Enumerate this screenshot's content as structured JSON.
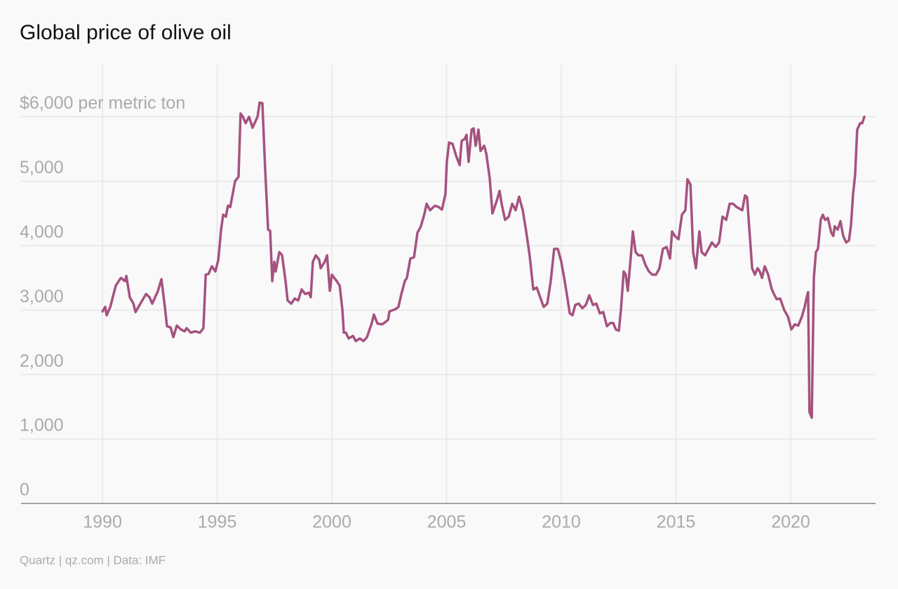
{
  "chart_data": {
    "type": "line",
    "title": "Global price of olive oil",
    "source": "Quartz | qz.com | Data: IMF",
    "xlim": [
      1986.45,
      2023.7
    ],
    "xticks": [
      1990,
      1995,
      2000,
      2005,
      2010,
      2015,
      2020
    ],
    "ylim": [
      0,
      6800
    ],
    "yticks": [
      0,
      {
        "value": 1000,
        "label": "1,000"
      },
      {
        "value": 2000,
        "label": "2,000"
      },
      {
        "value": 3000,
        "label": "3,000"
      },
      {
        "value": 4000,
        "label": "4,000"
      },
      {
        "value": 5000,
        "label": "5,000"
      },
      {
        "value": 6000,
        "label": "$6,000 per metric ton"
      }
    ],
    "grid": true,
    "x": [
      1990.0,
      1990.12,
      1990.18,
      1990.34,
      1990.58,
      1990.8,
      1990.98,
      1991.04,
      1991.19,
      1991.35,
      1991.44,
      1991.65,
      1991.9,
      1992.05,
      1992.17,
      1992.42,
      1992.57,
      1992.72,
      1992.81,
      1992.97,
      1993.09,
      1993.24,
      1993.42,
      1993.58,
      1993.67,
      1993.85,
      1994.04,
      1994.25,
      1994.4,
      1994.5,
      1994.62,
      1994.77,
      1994.92,
      1995.05,
      1995.17,
      1995.26,
      1995.38,
      1995.47,
      1995.57,
      1995.78,
      1995.93,
      1996.02,
      1996.12,
      1996.24,
      1996.39,
      1996.54,
      1996.76,
      1996.85,
      1996.97,
      1997.09,
      1997.22,
      1997.31,
      1997.4,
      1997.49,
      1997.55,
      1997.71,
      1997.83,
      1997.98,
      1998.07,
      1998.23,
      1998.38,
      1998.53,
      1998.68,
      1998.84,
      1998.99,
      1999.08,
      1999.17,
      1999.3,
      1999.45,
      1999.51,
      1999.69,
      1999.79,
      1999.91,
      2000.0,
      2000.21,
      2000.34,
      2000.46,
      2000.52,
      2000.61,
      2000.73,
      2000.92,
      2001.04,
      2001.22,
      2001.38,
      2001.53,
      2001.74,
      2001.83,
      2001.99,
      2002.2,
      2002.35,
      2002.45,
      2002.51,
      2002.66,
      2002.75,
      2002.9,
      2003.03,
      2003.18,
      2003.27,
      2003.42,
      2003.58,
      2003.73,
      2003.88,
      2004.04,
      2004.13,
      2004.28,
      2004.49,
      2004.65,
      2004.8,
      2004.95,
      2005.01,
      2005.11,
      2005.26,
      2005.41,
      2005.57,
      2005.66,
      2005.78,
      2005.87,
      2005.96,
      2006.09,
      2006.18,
      2006.27,
      2006.39,
      2006.48,
      2006.64,
      2006.73,
      2006.88,
      2007.0,
      2007.19,
      2007.31,
      2007.4,
      2007.55,
      2007.71,
      2007.86,
      2008.01,
      2008.16,
      2008.32,
      2008.47,
      2008.62,
      2008.78,
      2008.93,
      2009.08,
      2009.23,
      2009.39,
      2009.54,
      2009.69,
      2009.85,
      2010.0,
      2010.15,
      2010.24,
      2010.37,
      2010.49,
      2010.61,
      2010.76,
      2010.92,
      2011.07,
      2011.22,
      2011.38,
      2011.53,
      2011.68,
      2011.83,
      2011.99,
      2012.14,
      2012.26,
      2012.38,
      2012.51,
      2012.6,
      2012.72,
      2012.81,
      2012.9,
      2013.0,
      2013.12,
      2013.24,
      2013.36,
      2013.52,
      2013.67,
      2013.82,
      2013.97,
      2014.13,
      2014.28,
      2014.43,
      2014.59,
      2014.74,
      2014.83,
      2014.95,
      2015.11,
      2015.26,
      2015.41,
      2015.5,
      2015.63,
      2015.75,
      2015.87,
      2016.02,
      2016.12,
      2016.27,
      2016.42,
      2016.57,
      2016.73,
      2016.88,
      2017.03,
      2017.19,
      2017.34,
      2017.49,
      2017.64,
      2017.89,
      2018.01,
      2018.1,
      2018.19,
      2018.32,
      2018.44,
      2018.56,
      2018.65,
      2018.75,
      2018.87,
      2019.02,
      2019.17,
      2019.27,
      2019.39,
      2019.54,
      2019.72,
      2019.88,
      2020.03,
      2020.18,
      2020.33,
      2020.49,
      2020.61,
      2020.7,
      2020.76,
      2020.82,
      2020.92,
      2021.01,
      2021.1,
      2021.19,
      2021.31,
      2021.4,
      2021.5,
      2021.62,
      2021.77,
      2021.86,
      2021.92,
      2022.05,
      2022.17,
      2022.29,
      2022.42,
      2022.54,
      2022.63,
      2022.72,
      2022.81,
      2022.9,
      2023.03,
      2023.12,
      2023.21
    ],
    "series": [
      {
        "name": "Olive oil",
        "color": "#a5527f",
        "values": [
          2980,
          3050,
          2920,
          3050,
          3380,
          3500,
          3450,
          3530,
          3200,
          3100,
          2970,
          3100,
          3250,
          3200,
          3100,
          3300,
          3480,
          3050,
          2750,
          2730,
          2580,
          2760,
          2700,
          2670,
          2720,
          2650,
          2670,
          2650,
          2720,
          3550,
          3560,
          3680,
          3600,
          3780,
          4250,
          4480,
          4450,
          4620,
          4600,
          5000,
          5070,
          6050,
          6000,
          5900,
          6000,
          5830,
          6000,
          6220,
          6210,
          5200,
          4250,
          4230,
          3450,
          3750,
          3600,
          3900,
          3850,
          3450,
          3150,
          3100,
          3180,
          3150,
          3320,
          3250,
          3270,
          3200,
          3750,
          3850,
          3780,
          3650,
          3750,
          3850,
          3300,
          3550,
          3450,
          3380,
          3000,
          2650,
          2650,
          2560,
          2600,
          2520,
          2560,
          2520,
          2580,
          2800,
          2930,
          2790,
          2780,
          2820,
          2850,
          2980,
          3000,
          3010,
          3050,
          3250,
          3450,
          3500,
          3800,
          3820,
          4200,
          4300,
          4500,
          4650,
          4550,
          4620,
          4600,
          4560,
          4800,
          5300,
          5600,
          5580,
          5400,
          5250,
          5630,
          5650,
          5720,
          5300,
          5800,
          5820,
          5550,
          5800,
          5470,
          5550,
          5430,
          5050,
          4500,
          4700,
          4850,
          4650,
          4400,
          4450,
          4650,
          4550,
          4760,
          4550,
          4220,
          3850,
          3320,
          3350,
          3200,
          3050,
          3100,
          3450,
          3950,
          3950,
          3750,
          3450,
          3250,
          2950,
          2920,
          3080,
          3100,
          3030,
          3080,
          3230,
          3080,
          3100,
          2950,
          2970,
          2750,
          2800,
          2800,
          2700,
          2680,
          3000,
          3600,
          3550,
          3300,
          3700,
          4220,
          3900,
          3850,
          3850,
          3700,
          3600,
          3550,
          3550,
          3650,
          3950,
          3980,
          3800,
          4220,
          4150,
          4100,
          4480,
          4550,
          5030,
          4950,
          3900,
          3650,
          4220,
          3900,
          3850,
          3950,
          4050,
          3980,
          4050,
          4450,
          4400,
          4650,
          4650,
          4600,
          4550,
          4780,
          4750,
          4300,
          3650,
          3550,
          3650,
          3600,
          3500,
          3680,
          3550,
          3330,
          3250,
          3170,
          3180,
          3000,
          2900,
          2700,
          2780,
          2760,
          2900,
          3050,
          3200,
          3280,
          1420,
          1330,
          3500,
          3900,
          3950,
          4400,
          4480,
          4400,
          4430,
          4200,
          4150,
          4300,
          4250,
          4380,
          4150,
          4050,
          4080,
          4320,
          4800,
          5100,
          5800,
          5900,
          5900,
          6000
        ]
      }
    ]
  }
}
